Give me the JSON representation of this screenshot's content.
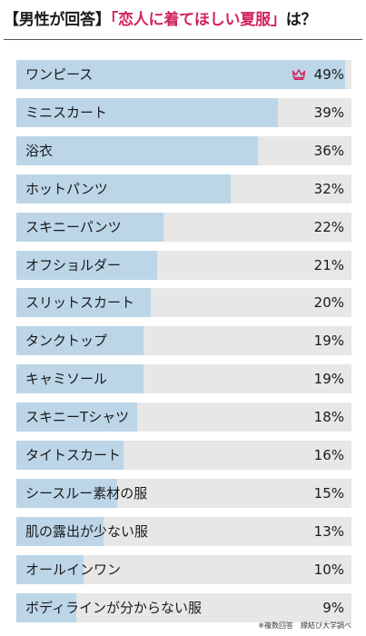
{
  "header": {
    "open_bracket": "【",
    "prefix": "男性が回答",
    "close_bracket": "】",
    "open_quote": "「",
    "topic": "恋人に着てほしい夏服",
    "close_quote": "」",
    "suffix": "は？"
  },
  "colors": {
    "bar_fill": "#bcd6e8",
    "track": "#e7e7e7",
    "accent": "#d0245a"
  },
  "top_item_icon": "crown-icon",
  "chart_data": {
    "type": "bar",
    "orientation": "horizontal",
    "categories": [
      "ワンピース",
      "ミニスカート",
      "浴衣",
      "ホットパンツ",
      "スキニーパンツ",
      "オフショルダー",
      "スリットスカート",
      "タンクトップ",
      "キャミソール",
      "スキニーTシャツ",
      "タイトスカート",
      "シースルー素材の服",
      "肌の露出が少ない服",
      "オールインワン",
      "ボディラインが分からない服"
    ],
    "values": [
      49,
      39,
      36,
      32,
      22,
      21,
      20,
      19,
      19,
      18,
      16,
      15,
      13,
      10,
      9
    ],
    "value_labels": [
      "49%",
      "39%",
      "36%",
      "32%",
      "22%",
      "21%",
      "20%",
      "19%",
      "19%",
      "18%",
      "16%",
      "15%",
      "13%",
      "10%",
      "9%"
    ],
    "xlim": [
      0,
      50
    ],
    "grid": false,
    "legend": "none"
  },
  "footnote": "※複数回答　縁結び大学調べ"
}
